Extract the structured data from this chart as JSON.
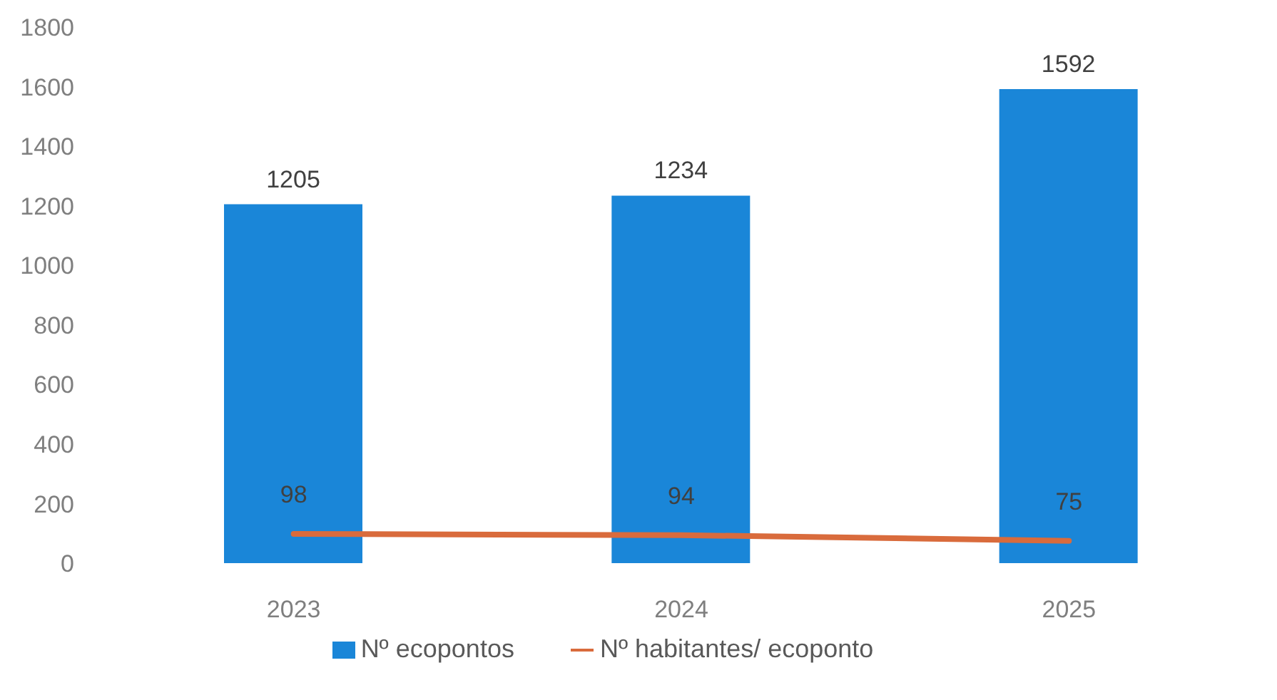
{
  "chart_data": {
    "type": "bar",
    "categories": [
      "2023",
      "2024",
      "2025"
    ],
    "series": [
      {
        "name": "Nº ecopontos",
        "color": "#1a86d8",
        "values": [
          1205,
          1234,
          1592
        ]
      },
      {
        "name": "Nº habitantes/ ecoponto",
        "type": "line",
        "color": "#d96b3c",
        "values": [
          98,
          94,
          75
        ]
      }
    ],
    "ylim": [
      0,
      1800
    ],
    "yticks": [
      0,
      200,
      400,
      600,
      800,
      1000,
      1200,
      1400,
      1600,
      1800
    ],
    "grid": false,
    "legend": "bottom",
    "data_labels": true,
    "marker": "none"
  }
}
